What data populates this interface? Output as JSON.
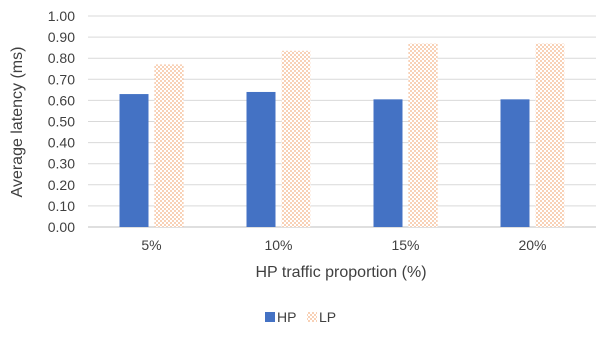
{
  "chart_data": {
    "type": "bar",
    "title": "",
    "xlabel": "HP traffic proportion (%)",
    "ylabel": "Average latency (ms)",
    "categories": [
      "5%",
      "10%",
      "15%",
      "20%"
    ],
    "ylim": [
      0,
      1.0
    ],
    "yticks": [
      "0.00",
      "0.10",
      "0.20",
      "0.30",
      "0.40",
      "0.50",
      "0.60",
      "0.70",
      "0.80",
      "0.90",
      "1.00"
    ],
    "grid": true,
    "legend": "bottom-center",
    "series": [
      {
        "name": "HP",
        "values": [
          0.63,
          0.64,
          0.605,
          0.605
        ],
        "color": "#4472C4",
        "pattern": "solid"
      },
      {
        "name": "LP",
        "values": [
          0.77,
          0.835,
          0.87,
          0.87
        ],
        "color": "#F4B183",
        "pattern": "dotted"
      }
    ]
  }
}
